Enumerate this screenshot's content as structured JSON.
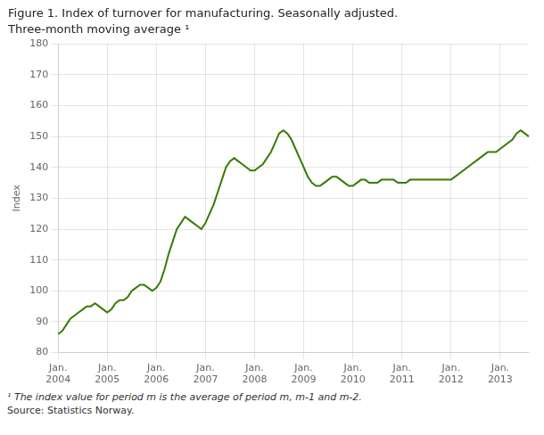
{
  "chart_data": {
    "type": "line",
    "title": "Figure 1. Index of turnover for manufacturing. Seasonally adjusted.",
    "subtitle": "Three-month moving average ¹",
    "ylabel": "Index",
    "annotations": [
      "¹ The index value for period m is the average of period m, m-1 and m-2.",
      "Source: Statistics Norway."
    ],
    "color": "#3a7a00",
    "grid": true,
    "ylim": [
      80,
      180
    ],
    "yticks": [
      80,
      90,
      100,
      110,
      120,
      130,
      140,
      150,
      160,
      170,
      180
    ],
    "categories": [
      "Jan.\n2004",
      null,
      null,
      null,
      null,
      null,
      null,
      null,
      null,
      null,
      null,
      null,
      "Jan.\n2005",
      null,
      null,
      null,
      null,
      null,
      null,
      null,
      null,
      null,
      null,
      null,
      "Jan.\n2006",
      null,
      null,
      null,
      null,
      null,
      null,
      null,
      null,
      null,
      null,
      null,
      "Jan.\n2007",
      null,
      null,
      null,
      null,
      null,
      null,
      null,
      null,
      null,
      null,
      null,
      "Jan.\n2008",
      null,
      null,
      null,
      null,
      null,
      null,
      null,
      null,
      null,
      null,
      null,
      "Jan.\n2009",
      null,
      null,
      null,
      null,
      null,
      null,
      null,
      null,
      null,
      null,
      null,
      "Jan.\n2010",
      null,
      null,
      null,
      null,
      null,
      null,
      null,
      null,
      null,
      null,
      null,
      "Jan.\n2011",
      null,
      null,
      null,
      null,
      null,
      null,
      null,
      null,
      null,
      null,
      null,
      "Jan.\n2012",
      null,
      null,
      null,
      null,
      null,
      null,
      null,
      null,
      null,
      null,
      null,
      "Jan.\n2013",
      null,
      null,
      null,
      null,
      null,
      null,
      null
    ],
    "values": [
      86,
      87,
      89,
      91,
      92,
      93,
      94,
      95,
      95,
      96,
      95,
      94,
      93,
      94,
      96,
      97,
      97,
      98,
      100,
      101,
      102,
      102,
      101,
      100,
      101,
      103,
      107,
      112,
      116,
      120,
      122,
      124,
      123,
      122,
      121,
      120,
      122,
      125,
      128,
      132,
      136,
      140,
      142,
      143,
      142,
      141,
      140,
      139,
      139,
      140,
      141,
      143,
      145,
      148,
      151,
      152,
      151,
      149,
      146,
      143,
      140,
      137,
      135,
      134,
      134,
      135,
      136,
      137,
      137,
      136,
      135,
      134,
      134,
      135,
      136,
      136,
      135,
      135,
      135,
      136,
      136,
      136,
      136,
      135,
      135,
      135,
      136,
      136,
      136,
      136,
      136,
      136,
      136,
      136,
      136,
      136,
      136,
      137,
      138,
      139,
      140,
      141,
      142,
      143,
      144,
      145,
      145,
      145,
      146,
      147,
      148,
      149,
      151,
      152,
      151,
      150
    ]
  }
}
